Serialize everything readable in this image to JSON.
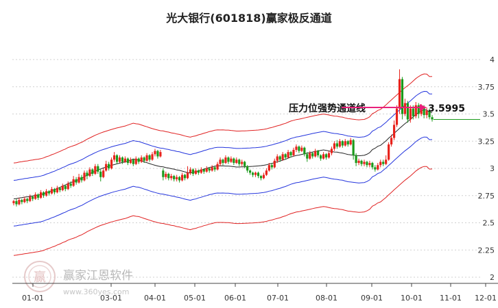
{
  "chart_data": {
    "type": "candlestick",
    "title": "光大银行(601818)赢家极反通道",
    "xlabel": "",
    "ylabel": "",
    "x_ticks": [
      "01-01",
      "03-01",
      "04-01",
      "05-01",
      "06-01",
      "07-01",
      "08-01",
      "09-01",
      "10-01",
      "11-01",
      "12-01"
    ],
    "y_ticks": [
      "2",
      "2.25",
      "2.5",
      "2.75",
      "3",
      "3.25",
      "3.5",
      "3.75",
      "4"
    ],
    "ylim": [
      2,
      4
    ],
    "grid": "horizontal dashed",
    "annotation": {
      "label": "压力位强势通道线",
      "value": "3.5995"
    },
    "series_colors": {
      "up_candle": "#e8221b",
      "down_candle": "#1a9a1a",
      "outer_band": "#e02020",
      "inner_band": "#2233dd",
      "middle_line": "#222222",
      "price_line": "#1a9a1a",
      "arrow": "#e8207a"
    },
    "candles": [
      [
        2.68,
        2.7,
        2.66,
        2.71
      ],
      [
        2.7,
        2.67,
        2.65,
        2.72
      ],
      [
        2.67,
        2.71,
        2.66,
        2.73
      ],
      [
        2.71,
        2.69,
        2.67,
        2.72
      ],
      [
        2.69,
        2.72,
        2.68,
        2.74
      ],
      [
        2.72,
        2.7,
        2.68,
        2.73
      ],
      [
        2.7,
        2.74,
        2.69,
        2.76
      ],
      [
        2.74,
        2.72,
        2.7,
        2.75
      ],
      [
        2.72,
        2.76,
        2.71,
        2.78
      ],
      [
        2.76,
        2.73,
        2.71,
        2.77
      ],
      [
        2.73,
        2.78,
        2.72,
        2.8
      ],
      [
        2.78,
        2.75,
        2.73,
        2.79
      ],
      [
        2.75,
        2.79,
        2.74,
        2.81
      ],
      [
        2.79,
        2.77,
        2.75,
        2.8
      ],
      [
        2.77,
        2.81,
        2.76,
        2.83
      ],
      [
        2.81,
        2.78,
        2.76,
        2.82
      ],
      [
        2.78,
        2.82,
        2.77,
        2.84
      ],
      [
        2.82,
        2.8,
        2.78,
        2.83
      ],
      [
        2.8,
        2.84,
        2.79,
        2.86
      ],
      [
        2.84,
        2.81,
        2.79,
        2.85
      ],
      [
        2.81,
        2.86,
        2.8,
        2.88
      ],
      [
        2.86,
        2.84,
        2.82,
        2.88
      ],
      [
        2.84,
        2.9,
        2.83,
        2.93
      ],
      [
        2.9,
        2.87,
        2.85,
        2.92
      ],
      [
        2.87,
        2.92,
        2.86,
        2.95
      ],
      [
        2.92,
        2.89,
        2.87,
        2.94
      ],
      [
        2.89,
        2.96,
        2.88,
        2.98
      ],
      [
        2.96,
        2.93,
        2.9,
        2.98
      ],
      [
        2.93,
        2.99,
        2.92,
        3.01
      ],
      [
        2.99,
        2.95,
        2.93,
        3.0
      ],
      [
        2.95,
        3.02,
        2.94,
        3.04
      ],
      [
        3.02,
        2.97,
        2.95,
        3.04
      ],
      [
        2.97,
        2.92,
        2.88,
        2.99
      ],
      [
        2.92,
        2.98,
        2.91,
        3.0
      ],
      [
        2.98,
        3.04,
        2.97,
        3.07
      ],
      [
        3.04,
        3.0,
        2.98,
        3.06
      ],
      [
        3.0,
        3.08,
        2.99,
        3.1
      ],
      [
        3.08,
        3.12,
        3.06,
        3.15
      ],
      [
        3.12,
        3.06,
        3.04,
        3.13
      ],
      [
        3.06,
        3.1,
        3.05,
        3.12
      ],
      [
        3.1,
        3.06,
        3.04,
        3.11
      ],
      [
        3.06,
        3.09,
        3.05,
        3.11
      ],
      [
        3.09,
        3.05,
        3.03,
        3.1
      ],
      [
        3.05,
        3.08,
        3.04,
        3.1
      ],
      [
        3.08,
        3.04,
        3.02,
        3.09
      ],
      [
        3.04,
        3.09,
        3.03,
        3.11
      ],
      [
        3.09,
        3.06,
        3.04,
        3.1
      ],
      [
        3.06,
        3.1,
        3.05,
        3.12
      ],
      [
        3.1,
        3.07,
        3.05,
        3.11
      ],
      [
        3.07,
        3.12,
        3.06,
        3.14
      ],
      [
        3.12,
        3.08,
        3.06,
        3.13
      ],
      [
        3.08,
        3.13,
        3.07,
        3.15
      ],
      [
        3.13,
        3.16,
        3.11,
        3.18
      ],
      [
        3.16,
        3.11,
        3.09,
        3.17
      ],
      [
        3.11,
        3.15,
        3.1,
        3.17
      ],
      [
        2.98,
        2.92,
        2.89,
        3.0
      ],
      [
        2.92,
        2.95,
        2.9,
        2.97
      ],
      [
        2.95,
        2.91,
        2.89,
        2.96
      ],
      [
        2.91,
        2.93,
        2.89,
        2.95
      ],
      [
        2.93,
        2.9,
        2.88,
        2.94
      ],
      [
        2.9,
        2.92,
        2.88,
        2.94
      ],
      [
        2.92,
        2.89,
        2.87,
        2.93
      ],
      [
        2.89,
        2.94,
        2.88,
        2.96
      ],
      [
        2.94,
        2.91,
        2.89,
        2.95
      ],
      [
        2.91,
        2.96,
        2.9,
        3.02
      ],
      [
        2.96,
        2.99,
        2.94,
        3.01
      ],
      [
        2.99,
        2.95,
        2.93,
        3.0
      ],
      [
        2.95,
        2.98,
        2.94,
        3.0
      ],
      [
        2.98,
        2.96,
        2.94,
        2.99
      ],
      [
        2.96,
        2.99,
        2.95,
        3.01
      ],
      [
        2.99,
        2.97,
        2.95,
        3.0
      ],
      [
        2.97,
        3.0,
        2.96,
        3.02
      ],
      [
        3.0,
        2.98,
        2.96,
        3.01
      ],
      [
        2.98,
        3.01,
        2.97,
        3.03
      ],
      [
        3.01,
        2.99,
        2.97,
        3.02
      ],
      [
        2.99,
        3.04,
        2.98,
        3.06
      ],
      [
        3.04,
        3.08,
        3.02,
        3.1
      ],
      [
        3.08,
        3.05,
        3.03,
        3.09
      ],
      [
        3.05,
        3.1,
        3.04,
        3.12
      ],
      [
        3.1,
        3.06,
        3.04,
        3.11
      ],
      [
        3.06,
        3.09,
        3.05,
        3.11
      ],
      [
        3.09,
        3.05,
        3.03,
        3.1
      ],
      [
        3.05,
        3.08,
        3.04,
        3.1
      ],
      [
        3.08,
        3.04,
        3.02,
        3.09
      ],
      [
        3.04,
        3.06,
        3.02,
        3.08
      ],
      [
        3.06,
        3.02,
        3.0,
        3.07
      ],
      [
        3.02,
        2.98,
        2.96,
        3.03
      ],
      [
        2.98,
        2.96,
        2.94,
        2.99
      ],
      [
        2.96,
        2.94,
        2.92,
        2.97
      ],
      [
        2.94,
        2.96,
        2.92,
        2.97
      ],
      [
        2.96,
        2.93,
        2.91,
        2.97
      ],
      [
        2.93,
        2.91,
        2.89,
        2.94
      ],
      [
        2.91,
        2.94,
        2.9,
        2.96
      ],
      [
        2.94,
        2.98,
        2.93,
        3.0
      ],
      [
        2.98,
        3.03,
        2.97,
        3.05
      ],
      [
        3.03,
        3.01,
        2.99,
        3.05
      ],
      [
        3.01,
        3.07,
        3.0,
        3.09
      ],
      [
        3.07,
        3.11,
        3.05,
        3.13
      ],
      [
        3.11,
        3.08,
        3.06,
        3.12
      ],
      [
        3.08,
        3.13,
        3.07,
        3.15
      ],
      [
        3.13,
        3.1,
        3.08,
        3.14
      ],
      [
        3.1,
        3.15,
        3.09,
        3.17
      ],
      [
        3.15,
        3.12,
        3.1,
        3.16
      ],
      [
        3.12,
        3.17,
        3.11,
        3.19
      ],
      [
        3.17,
        3.2,
        3.15,
        3.22
      ],
      [
        3.2,
        3.16,
        3.14,
        3.21
      ],
      [
        3.16,
        3.19,
        3.15,
        3.21
      ],
      [
        3.19,
        3.13,
        3.11,
        3.2
      ],
      [
        3.13,
        3.09,
        3.06,
        3.15
      ],
      [
        3.09,
        3.14,
        3.08,
        3.16
      ],
      [
        3.14,
        3.11,
        3.09,
        3.15
      ],
      [
        3.11,
        3.16,
        3.1,
        3.18
      ],
      [
        3.16,
        3.12,
        3.1,
        3.17
      ],
      [
        3.12,
        3.09,
        3.07,
        3.13
      ],
      [
        3.09,
        3.13,
        3.08,
        3.15
      ],
      [
        3.13,
        3.1,
        3.08,
        3.14
      ],
      [
        3.1,
        3.14,
        3.09,
        3.16
      ],
      [
        3.14,
        3.18,
        3.12,
        3.2
      ],
      [
        3.18,
        3.23,
        3.16,
        3.25
      ],
      [
        3.23,
        3.2,
        3.18,
        3.26
      ],
      [
        3.2,
        3.25,
        3.19,
        3.27
      ],
      [
        3.25,
        3.21,
        3.19,
        3.26
      ],
      [
        3.21,
        3.25,
        3.2,
        3.27
      ],
      [
        3.25,
        3.22,
        3.2,
        3.26
      ],
      [
        3.22,
        3.26,
        3.21,
        3.28
      ],
      [
        3.26,
        3.12,
        3.08,
        3.27
      ],
      [
        3.12,
        3.05,
        3.02,
        3.14
      ],
      [
        3.05,
        3.07,
        3.03,
        3.09
      ],
      [
        3.07,
        3.04,
        3.02,
        3.08
      ],
      [
        3.04,
        3.06,
        3.02,
        3.08
      ],
      [
        3.06,
        3.03,
        3.01,
        3.07
      ],
      [
        3.03,
        3.05,
        3.01,
        3.07
      ],
      [
        3.05,
        3.01,
        2.99,
        3.06
      ],
      [
        3.01,
        2.99,
        2.97,
        3.03
      ],
      [
        2.99,
        3.03,
        2.98,
        3.05
      ],
      [
        3.03,
        3.06,
        3.01,
        3.08
      ],
      [
        3.06,
        3.04,
        3.02,
        3.08
      ],
      [
        3.04,
        3.08,
        3.03,
        3.12
      ],
      [
        3.08,
        3.22,
        3.07,
        3.24
      ],
      [
        3.22,
        3.28,
        3.2,
        3.31
      ],
      [
        3.28,
        3.4,
        3.26,
        3.44
      ],
      [
        3.4,
        3.55,
        3.38,
        3.58
      ],
      [
        3.55,
        3.82,
        3.5,
        3.91
      ],
      [
        3.82,
        3.5,
        3.45,
        3.84
      ],
      [
        3.5,
        3.6,
        3.48,
        3.64
      ],
      [
        3.6,
        3.45,
        3.42,
        3.62
      ],
      [
        3.45,
        3.55,
        3.42,
        3.58
      ],
      [
        3.55,
        3.48,
        3.45,
        3.58
      ],
      [
        3.48,
        3.58,
        3.46,
        3.61
      ],
      [
        3.58,
        3.5,
        3.46,
        3.6
      ],
      [
        3.5,
        3.56,
        3.48,
        3.59
      ],
      [
        3.56,
        3.49,
        3.46,
        3.58
      ],
      [
        3.49,
        3.53,
        3.46,
        3.56
      ],
      [
        3.53,
        3.47,
        3.45,
        3.55
      ],
      [
        3.47,
        3.45,
        3.43,
        3.49
      ]
    ]
  },
  "watermark": {
    "logo_text": "赢",
    "brand": "赢家江恩软件",
    "url": "www.360yes.com"
  }
}
